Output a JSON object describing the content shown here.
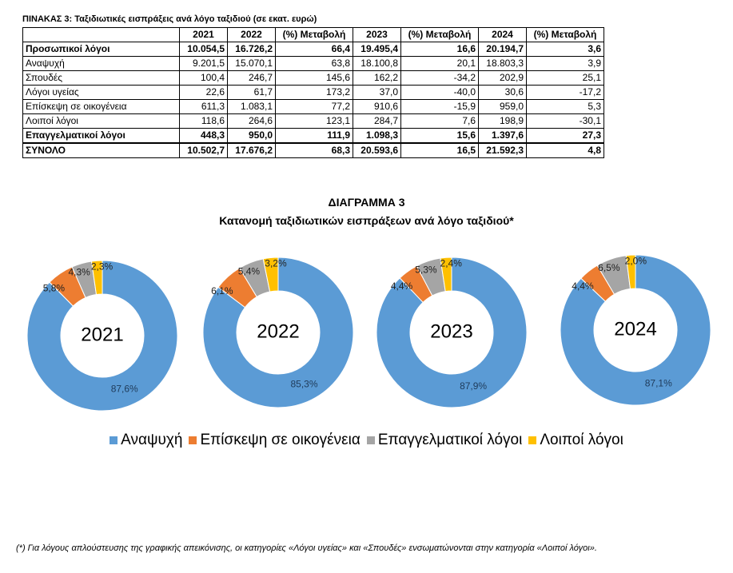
{
  "table": {
    "caption": "ΠΙΝΑΚΑΣ 3: Ταξιδιωτικές εισπράξεις ανά λόγο ταξιδιού (σε εκατ. ευρώ)",
    "headers": [
      "",
      "2021",
      "2022",
      "(%) Μεταβολή",
      "2023",
      "(%) Μεταβολή",
      "2024",
      "(%) Μεταβολή"
    ],
    "rows": [
      {
        "label": "Προσωπικοί λόγοι",
        "cells": [
          "10.054,5",
          "16.726,2",
          "66,4",
          "19.495,4",
          "16,6",
          "20.194,7",
          "3,6"
        ],
        "bold": true
      },
      {
        "label": "Αναψυχή",
        "cells": [
          "9.201,5",
          "15.070,1",
          "63,8",
          "18.100,8",
          "20,1",
          "18.803,3",
          "3,9"
        ],
        "bold": false
      },
      {
        "label": "Σπουδές",
        "cells": [
          "100,4",
          "246,7",
          "145,6",
          "162,2",
          "-34,2",
          "202,9",
          "25,1"
        ],
        "bold": false
      },
      {
        "label": "Λόγοι υγείας",
        "cells": [
          "22,6",
          "61,7",
          "173,2",
          "37,0",
          "-40,0",
          "30,6",
          "-17,2"
        ],
        "bold": false
      },
      {
        "label": "Επίσκεψη σε οικογένεια",
        "cells": [
          "611,3",
          "1.083,1",
          "77,2",
          "910,6",
          "-15,9",
          "959,0",
          "5,3"
        ],
        "bold": false
      },
      {
        "label": "Λοιποί λόγοι",
        "cells": [
          "118,6",
          "264,6",
          "123,1",
          "284,7",
          "7,6",
          "198,9",
          "-30,1"
        ],
        "bold": false
      },
      {
        "label": "Επαγγελματικοί λόγοι",
        "cells": [
          "448,3",
          "950,0",
          "111,9",
          "1.098,3",
          "15,6",
          "1.397,6",
          "27,3"
        ],
        "bold": true
      },
      {
        "label": "ΣΥΝΟΛΟ",
        "cells": [
          "10.502,7",
          "17.676,2",
          "68,3",
          "20.593,6",
          "16,5",
          "21.592,3",
          "4,8"
        ],
        "bold": true,
        "total": true
      }
    ]
  },
  "diagram": {
    "number_label": "ΔΙΑΓΡΑΜΜΑ 3",
    "title": "Κατανομή ταξιδιωτικών εισπράξεων ανά λόγο ταξιδιού*"
  },
  "chart_data": [
    {
      "type": "pie",
      "center_label": "2021",
      "categories": [
        "Αναψυχή",
        "Επίσκεψη σε οικογένεια",
        "Επαγγελματικοί λόγοι",
        "Λοιποί λόγοι"
      ],
      "values": [
        87.6,
        5.8,
        4.3,
        2.3
      ],
      "labels": [
        "87,6%",
        "5,8%",
        "4,3%",
        "2,3%"
      ]
    },
    {
      "type": "pie",
      "center_label": "2022",
      "categories": [
        "Αναψυχή",
        "Επίσκεψη σε οικογένεια",
        "Επαγγελματικοί λόγοι",
        "Λοιποί λόγοι"
      ],
      "values": [
        85.3,
        6.1,
        5.4,
        3.2
      ],
      "labels": [
        "85,3%",
        "6,1%",
        "5,4%",
        "3,2%"
      ]
    },
    {
      "type": "pie",
      "center_label": "2023",
      "categories": [
        "Αναψυχή",
        "Επίσκεψη σε οικογένεια",
        "Επαγγελματικοί λόγοι",
        "Λοιποί λόγοι"
      ],
      "values": [
        87.9,
        4.4,
        5.3,
        2.4
      ],
      "labels": [
        "87,9%",
        "4,4%",
        "5,3%",
        "2,4%"
      ]
    },
    {
      "type": "pie",
      "center_label": "2024",
      "categories": [
        "Αναψυχή",
        "Επίσκεψη σε οικογένεια",
        "Επαγγελματικοί λόγοι",
        "Λοιποί λόγοι"
      ],
      "values": [
        87.1,
        4.4,
        6.5,
        2.0
      ],
      "labels": [
        "87,1%",
        "4,4%",
        "6,5%",
        "2,0%"
      ]
    }
  ],
  "legend": [
    {
      "label": "Αναψυχή",
      "color": "#5b9bd5"
    },
    {
      "label": "Επίσκεψη σε οικογένεια",
      "color": "#ed7d31"
    },
    {
      "label": "Επαγγελματικοί λόγοι",
      "color": "#a5a5a5"
    },
    {
      "label": "Λοιποί λόγοι",
      "color": "#ffc000"
    }
  ],
  "footnote": "(*) Για λόγους απλούστευσης της γραφικής απεικόνισης, οι κατηγορίες «Λόγοι υγείας» και «Σπουδές» ενσωματώνονται στην κατηγορία «Λοιποί λόγοι»."
}
